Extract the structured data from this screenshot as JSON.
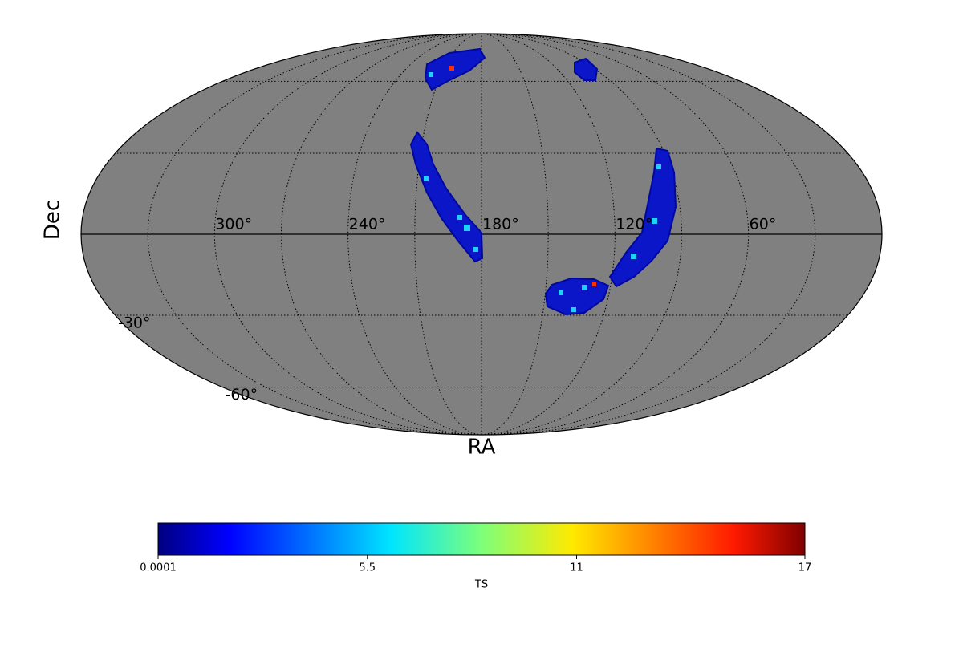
{
  "chart_data": {
    "type": "mollweide",
    "xlabel": "RA",
    "ylabel": "Dec",
    "xlim": [
      360,
      0
    ],
    "ylim": [
      -90,
      90
    ],
    "xticks": [
      {
        "value": 300,
        "label": "300°"
      },
      {
        "value": 240,
        "label": "240°"
      },
      {
        "value": 180,
        "label": "180°"
      },
      {
        "value": 120,
        "label": "120°"
      },
      {
        "value": 60,
        "label": "60°"
      }
    ],
    "yticks": [
      {
        "value": -30,
        "label": "-30°"
      },
      {
        "value": -60,
        "label": "-60°"
      }
    ],
    "meridians": [
      30,
      60,
      90,
      120,
      150,
      180,
      210,
      240,
      270,
      300,
      330
    ],
    "parallels": [
      -60,
      -30,
      30,
      60
    ],
    "background": "#808080",
    "colorbar": {
      "label": "TS",
      "lim": [
        0.0001,
        17
      ],
      "ticks": [
        0.0001,
        5.5,
        11,
        17
      ],
      "colormap": "jet"
    }
  }
}
